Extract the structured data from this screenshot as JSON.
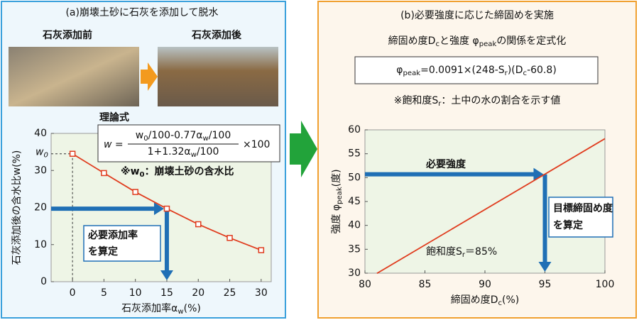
{
  "panel_a": {
    "title": "(a)崩壊土砂に石灰を添加して脱水",
    "photo_labels": [
      "石灰添加前",
      "石灰添加後"
    ]
  },
  "panel_b": {
    "title": "(b)必要強度に応じた締固めを実施",
    "subtitle": [
      "締固め度D",
      "c",
      "と強度 φ",
      "peak",
      "の関係を定式化"
    ],
    "formula": [
      "φ",
      "peak",
      "=0.0091×(248-S",
      "r",
      ")(D",
      "c",
      "-60.8)"
    ],
    "note": [
      "※飽和度S",
      "r",
      "：土中の水の割合を示す値"
    ]
  },
  "chart_data": [
    {
      "type": "line",
      "x": [
        0,
        5,
        10,
        15,
        20,
        25,
        30
      ],
      "values": [
        34.5,
        29.3,
        24.2,
        19.7,
        15.5,
        11.8,
        8.5
      ],
      "color": "#e03c1e",
      "marker": "square",
      "xlim": [
        -3.4,
        31.6
      ],
      "ylim": [
        0,
        40
      ],
      "xticks": [
        0,
        5,
        10,
        15,
        20,
        25,
        30
      ],
      "yticks": [
        0,
        10,
        20,
        30,
        40
      ],
      "xlabel": [
        "石灰添加率α",
        "w",
        "(%)"
      ],
      "ylabel": [
        "石灰添加後の含水比w(%)"
      ],
      "formula_label": "理論式",
      "formula": {
        "lhs": "w =",
        "numerator": [
          "w",
          "0",
          "/100-0.77α",
          "w",
          "/100"
        ],
        "denominator": [
          "1+1.32α",
          "w",
          "/100"
        ],
        "tail": "×100"
      },
      "note": [
        "※w",
        "0",
        "：崩壊土砂の含水比"
      ],
      "w0_label": [
        "w",
        "0"
      ],
      "target_label": [
        "必要添加率",
        "を算定"
      ]
    },
    {
      "type": "line",
      "x": [
        81,
        100
      ],
      "values": [
        29.96,
        58.15
      ],
      "color": "#e03c1e",
      "xlim": [
        80,
        100
      ],
      "ylim": [
        30,
        60
      ],
      "xticks": [
        80,
        85,
        90,
        95,
        100
      ],
      "yticks": [
        30,
        35,
        40,
        45,
        50,
        55,
        60
      ],
      "xlabel": [
        "締固め度D",
        "c",
        "(%)"
      ],
      "ylabel": [
        "強度 φ",
        "peak",
        "(度)"
      ],
      "required_strength": 50.7,
      "target_compaction": 95,
      "required_label": "必要強度",
      "target_label": [
        "目標締固め度",
        "を算定"
      ],
      "line_label": [
        "飽和度S",
        "r",
        "＝85%"
      ]
    }
  ]
}
